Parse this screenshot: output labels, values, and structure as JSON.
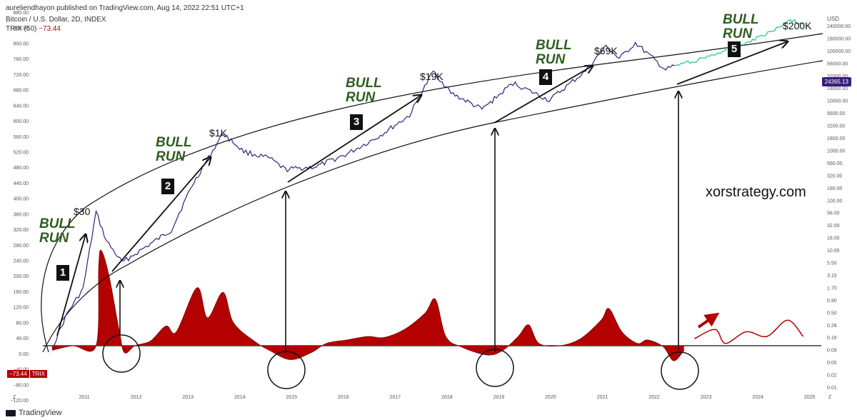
{
  "header": {
    "publisher": "aureliendhayon published on TradingView.com, Aug 14, 2022 22:51 UTC+1",
    "symbol": "Bitcoin / U.S. Dollar, 2D, INDEX",
    "indicator_name": "TRIX (50)",
    "indicator_value": "−73.44"
  },
  "footer": {
    "brand": "TradingView"
  },
  "right_axis": {
    "currency": "USD",
    "last_price": "24365.13"
  },
  "left_axis": {
    "trix_badge_value": "−73.44",
    "trix_badge_label": "TRIX"
  },
  "watermark": "xorstrategy.com",
  "annotations": {
    "bull_runs": [
      {
        "line1": "BULL",
        "line2": "RUN"
      },
      {
        "line1": "BULL",
        "line2": "RUN"
      },
      {
        "line1": "BULL",
        "line2": "RUN"
      },
      {
        "line1": "BULL",
        "line2": "RUN"
      },
      {
        "line1": "BULL",
        "line2": "RUN"
      }
    ],
    "price_labels": [
      "$30",
      "$1K",
      "$19K",
      "$69K",
      "$200K"
    ],
    "cycle_numbers": [
      "1",
      "2",
      "3",
      "4",
      "5"
    ]
  },
  "colors": {
    "price_line": "#3a1d7a",
    "projection_line": "#3fcfa5",
    "trix_fill": "#b30000",
    "annotation_green": "#2e5e1f"
  },
  "chart_data": {
    "type": "line",
    "title": "Bitcoin / U.S. Dollar, 2D, INDEX",
    "x_ticks": [
      "Z",
      "2011",
      "2012",
      "2013",
      "2014",
      "2015",
      "2016",
      "2017",
      "2018",
      "2019",
      "2020",
      "2021",
      "2022",
      "2023",
      "2024",
      "2025",
      "Z"
    ],
    "y_left": {
      "label": "TRIX (50)",
      "ticks": [
        "880.00",
        "840.00",
        "800.00",
        "760.00",
        "720.00",
        "680.00",
        "640.00",
        "600.00",
        "560.00",
        "520.00",
        "480.00",
        "440.00",
        "400.00",
        "360.00",
        "320.00",
        "280.00",
        "240.00",
        "200.00",
        "160.00",
        "120.00",
        "80.00",
        "40.00",
        "0.00",
        "−40.00",
        "−80.00",
        "−120.00"
      ],
      "range": [
        -120,
        880
      ]
    },
    "y_right": {
      "label": "USD",
      "scale": "log",
      "ticks": [
        "240000.00",
        "180000.00",
        "100000.00",
        "56000.00",
        "32000.00",
        "18000.00",
        "10000.00",
        "5600.00",
        "3200.00",
        "1800.00",
        "1000.00",
        "560.00",
        "320.00",
        "180.00",
        "100.00",
        "56.00",
        "32.00",
        "18.00",
        "10.00",
        "5.50",
        "3.10",
        "1.70",
        "0.90",
        "0.50",
        "0.28",
        "0.16",
        "0.09",
        "0.05",
        "0.02",
        "0.01"
      ]
    },
    "series": [
      {
        "name": "Bitcoin / U.S. Dollar",
        "color": "#3a1d7a",
        "points": [
          [
            "2010.6",
            0.06
          ],
          [
            "2010.9",
            0.3
          ],
          [
            "2011.2",
            0.9
          ],
          [
            "2011.45",
            30
          ],
          [
            "2011.65",
            8
          ],
          [
            "2011.95",
            3
          ],
          [
            "2012.5",
            7
          ],
          [
            "2012.9",
            13
          ],
          [
            "2013.3",
            100
          ],
          [
            "2013.9",
            1100
          ],
          [
            "2014.3",
            480
          ],
          [
            "2014.8",
            350
          ],
          [
            "2015.1",
            210
          ],
          [
            "2015.7",
            240
          ],
          [
            "2016.3",
            430
          ],
          [
            "2016.9",
            950
          ],
          [
            "2017.5",
            2500
          ],
          [
            "2017.96",
            19000
          ],
          [
            "2018.3",
            7000
          ],
          [
            "2018.9",
            3300
          ],
          [
            "2019.5",
            11000
          ],
          [
            "2020.2",
            5000
          ],
          [
            "2020.9",
            19000
          ],
          [
            "2021.3",
            60000
          ],
          [
            "2021.55",
            33000
          ],
          [
            "2021.86",
            69000
          ],
          [
            "2022.45",
            20000
          ],
          [
            "2022.62",
            24365
          ]
        ]
      },
      {
        "name": "Projection",
        "color": "#3fcfa5",
        "points": [
          [
            "2022.62",
            24365
          ],
          [
            "2023.0",
            30000
          ],
          [
            "2023.5",
            45000
          ],
          [
            "2024.0",
            70000
          ],
          [
            "2024.5",
            120000
          ],
          [
            "2024.85",
            200000
          ],
          [
            "2025.1",
            160000
          ]
        ]
      }
    ],
    "indicator": {
      "name": "TRIX (50)",
      "color": "#b30000",
      "points": [
        [
          "2010.6",
          -20
        ],
        [
          "2011.0",
          0
        ],
        [
          "2011.45",
          0
        ],
        [
          "2011.5",
          340
        ],
        [
          "2011.55",
          410
        ],
        [
          "2011.7",
          300
        ],
        [
          "2011.9",
          60
        ],
        [
          "2012.0",
          -30
        ],
        [
          "2012.2",
          0
        ],
        [
          "2012.5",
          20
        ],
        [
          "2012.8",
          85
        ],
        [
          "2013.0",
          60
        ],
        [
          "2013.4",
          250
        ],
        [
          "2013.6",
          120
        ],
        [
          "2013.9",
          230
        ],
        [
          "2014.1",
          100
        ],
        [
          "2014.5",
          20
        ],
        [
          "2014.8",
          -20
        ],
        [
          "2015.2",
          -60
        ],
        [
          "2015.6",
          -30
        ],
        [
          "2015.9",
          10
        ],
        [
          "2016.3",
          25
        ],
        [
          "2016.7",
          40
        ],
        [
          "2017.0",
          35
        ],
        [
          "2017.4",
          70
        ],
        [
          "2017.8",
          140
        ],
        [
          "2018.0",
          200
        ],
        [
          "2018.2",
          40
        ],
        [
          "2018.5",
          -5
        ],
        [
          "2019.0",
          -40
        ],
        [
          "2019.3",
          -20
        ],
        [
          "2019.6",
          40
        ],
        [
          "2019.8",
          90
        ],
        [
          "2020.0",
          10
        ],
        [
          "2020.4",
          0
        ],
        [
          "2020.8",
          30
        ],
        [
          "2021.2",
          110
        ],
        [
          "2021.35",
          160
        ],
        [
          "2021.6",
          60
        ],
        [
          "2021.9",
          10
        ],
        [
          "2022.1",
          25
        ],
        [
          "2022.4",
          -5
        ],
        [
          "2022.6",
          -65
        ],
        [
          "2022.8",
          -20
        ]
      ],
      "projection_points": [
        [
          "2023.0",
          30
        ],
        [
          "2023.4",
          70
        ],
        [
          "2023.6",
          10
        ],
        [
          "2024.0",
          60
        ],
        [
          "2024.4",
          40
        ],
        [
          "2024.8",
          110
        ],
        [
          "2025.1",
          40
        ]
      ]
    },
    "grid": false,
    "legend": "top-left"
  }
}
